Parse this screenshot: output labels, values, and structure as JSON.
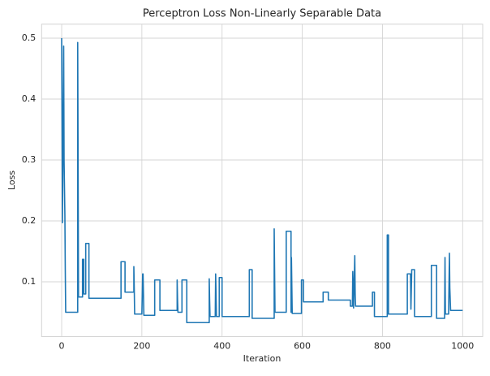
{
  "chart_data": {
    "type": "line",
    "title": "Perceptron Loss Non-Linearly Separable Data",
    "x_label": "Iteration",
    "y_label": "Loss",
    "xlim": [
      -50,
      1050
    ],
    "ylim": [
      0.01,
      0.523
    ],
    "xticks": [
      0,
      200,
      400,
      600,
      800,
      1000
    ],
    "yticks": [
      0.1,
      0.2,
      0.3,
      0.4,
      0.5
    ],
    "grid": true,
    "x": [
      0,
      1,
      2,
      3,
      5,
      6,
      8,
      9,
      10,
      40,
      40,
      41,
      42,
      52,
      52,
      55,
      55,
      60,
      60,
      68,
      68,
      148,
      148,
      158,
      158,
      180,
      180,
      181,
      182,
      200,
      202,
      203,
      205,
      232,
      232,
      245,
      245,
      288,
      288,
      289,
      290,
      300,
      300,
      312,
      312,
      368,
      368,
      369,
      370,
      383,
      384,
      385,
      386,
      393,
      393,
      400,
      400,
      468,
      468,
      475,
      475,
      530,
      530,
      531,
      532,
      560,
      560,
      572,
      572,
      573,
      575,
      598,
      598,
      603,
      603,
      652,
      652,
      665,
      665,
      720,
      720,
      725,
      726,
      728,
      731,
      732,
      733,
      775,
      775,
      780,
      780,
      812,
      812,
      815,
      815,
      862,
      862,
      870,
      871,
      873,
      880,
      880,
      922,
      922,
      935,
      935,
      955,
      956,
      957,
      965,
      967,
      968,
      970,
      1000
    ],
    "series": [
      {
        "name": "Loss",
        "color": "#1f77b4",
        "values": [
          0.5,
          0.35,
          0.197,
          0.3,
          0.487,
          0.3,
          0.21,
          0.12,
          0.05,
          0.05,
          0.493,
          0.3,
          0.075,
          0.075,
          0.137,
          0.137,
          0.08,
          0.08,
          0.163,
          0.163,
          0.073,
          0.073,
          0.133,
          0.133,
          0.083,
          0.083,
          0.125,
          0.09,
          0.047,
          0.047,
          0.113,
          0.113,
          0.045,
          0.045,
          0.103,
          0.103,
          0.053,
          0.053,
          0.103,
          0.07,
          0.05,
          0.05,
          0.103,
          0.103,
          0.033,
          0.033,
          0.105,
          0.07,
          0.043,
          0.043,
          0.113,
          0.08,
          0.043,
          0.043,
          0.107,
          0.107,
          0.043,
          0.043,
          0.12,
          0.12,
          0.04,
          0.04,
          0.187,
          0.12,
          0.05,
          0.05,
          0.183,
          0.183,
          0.05,
          0.14,
          0.048,
          0.048,
          0.103,
          0.103,
          0.067,
          0.067,
          0.083,
          0.083,
          0.07,
          0.07,
          0.06,
          0.06,
          0.117,
          0.057,
          0.143,
          0.08,
          0.06,
          0.06,
          0.083,
          0.083,
          0.043,
          0.043,
          0.177,
          0.177,
          0.047,
          0.047,
          0.113,
          0.113,
          0.055,
          0.12,
          0.12,
          0.043,
          0.043,
          0.127,
          0.127,
          0.04,
          0.04,
          0.14,
          0.047,
          0.047,
          0.147,
          0.09,
          0.053,
          0.053
        ]
      }
    ]
  }
}
